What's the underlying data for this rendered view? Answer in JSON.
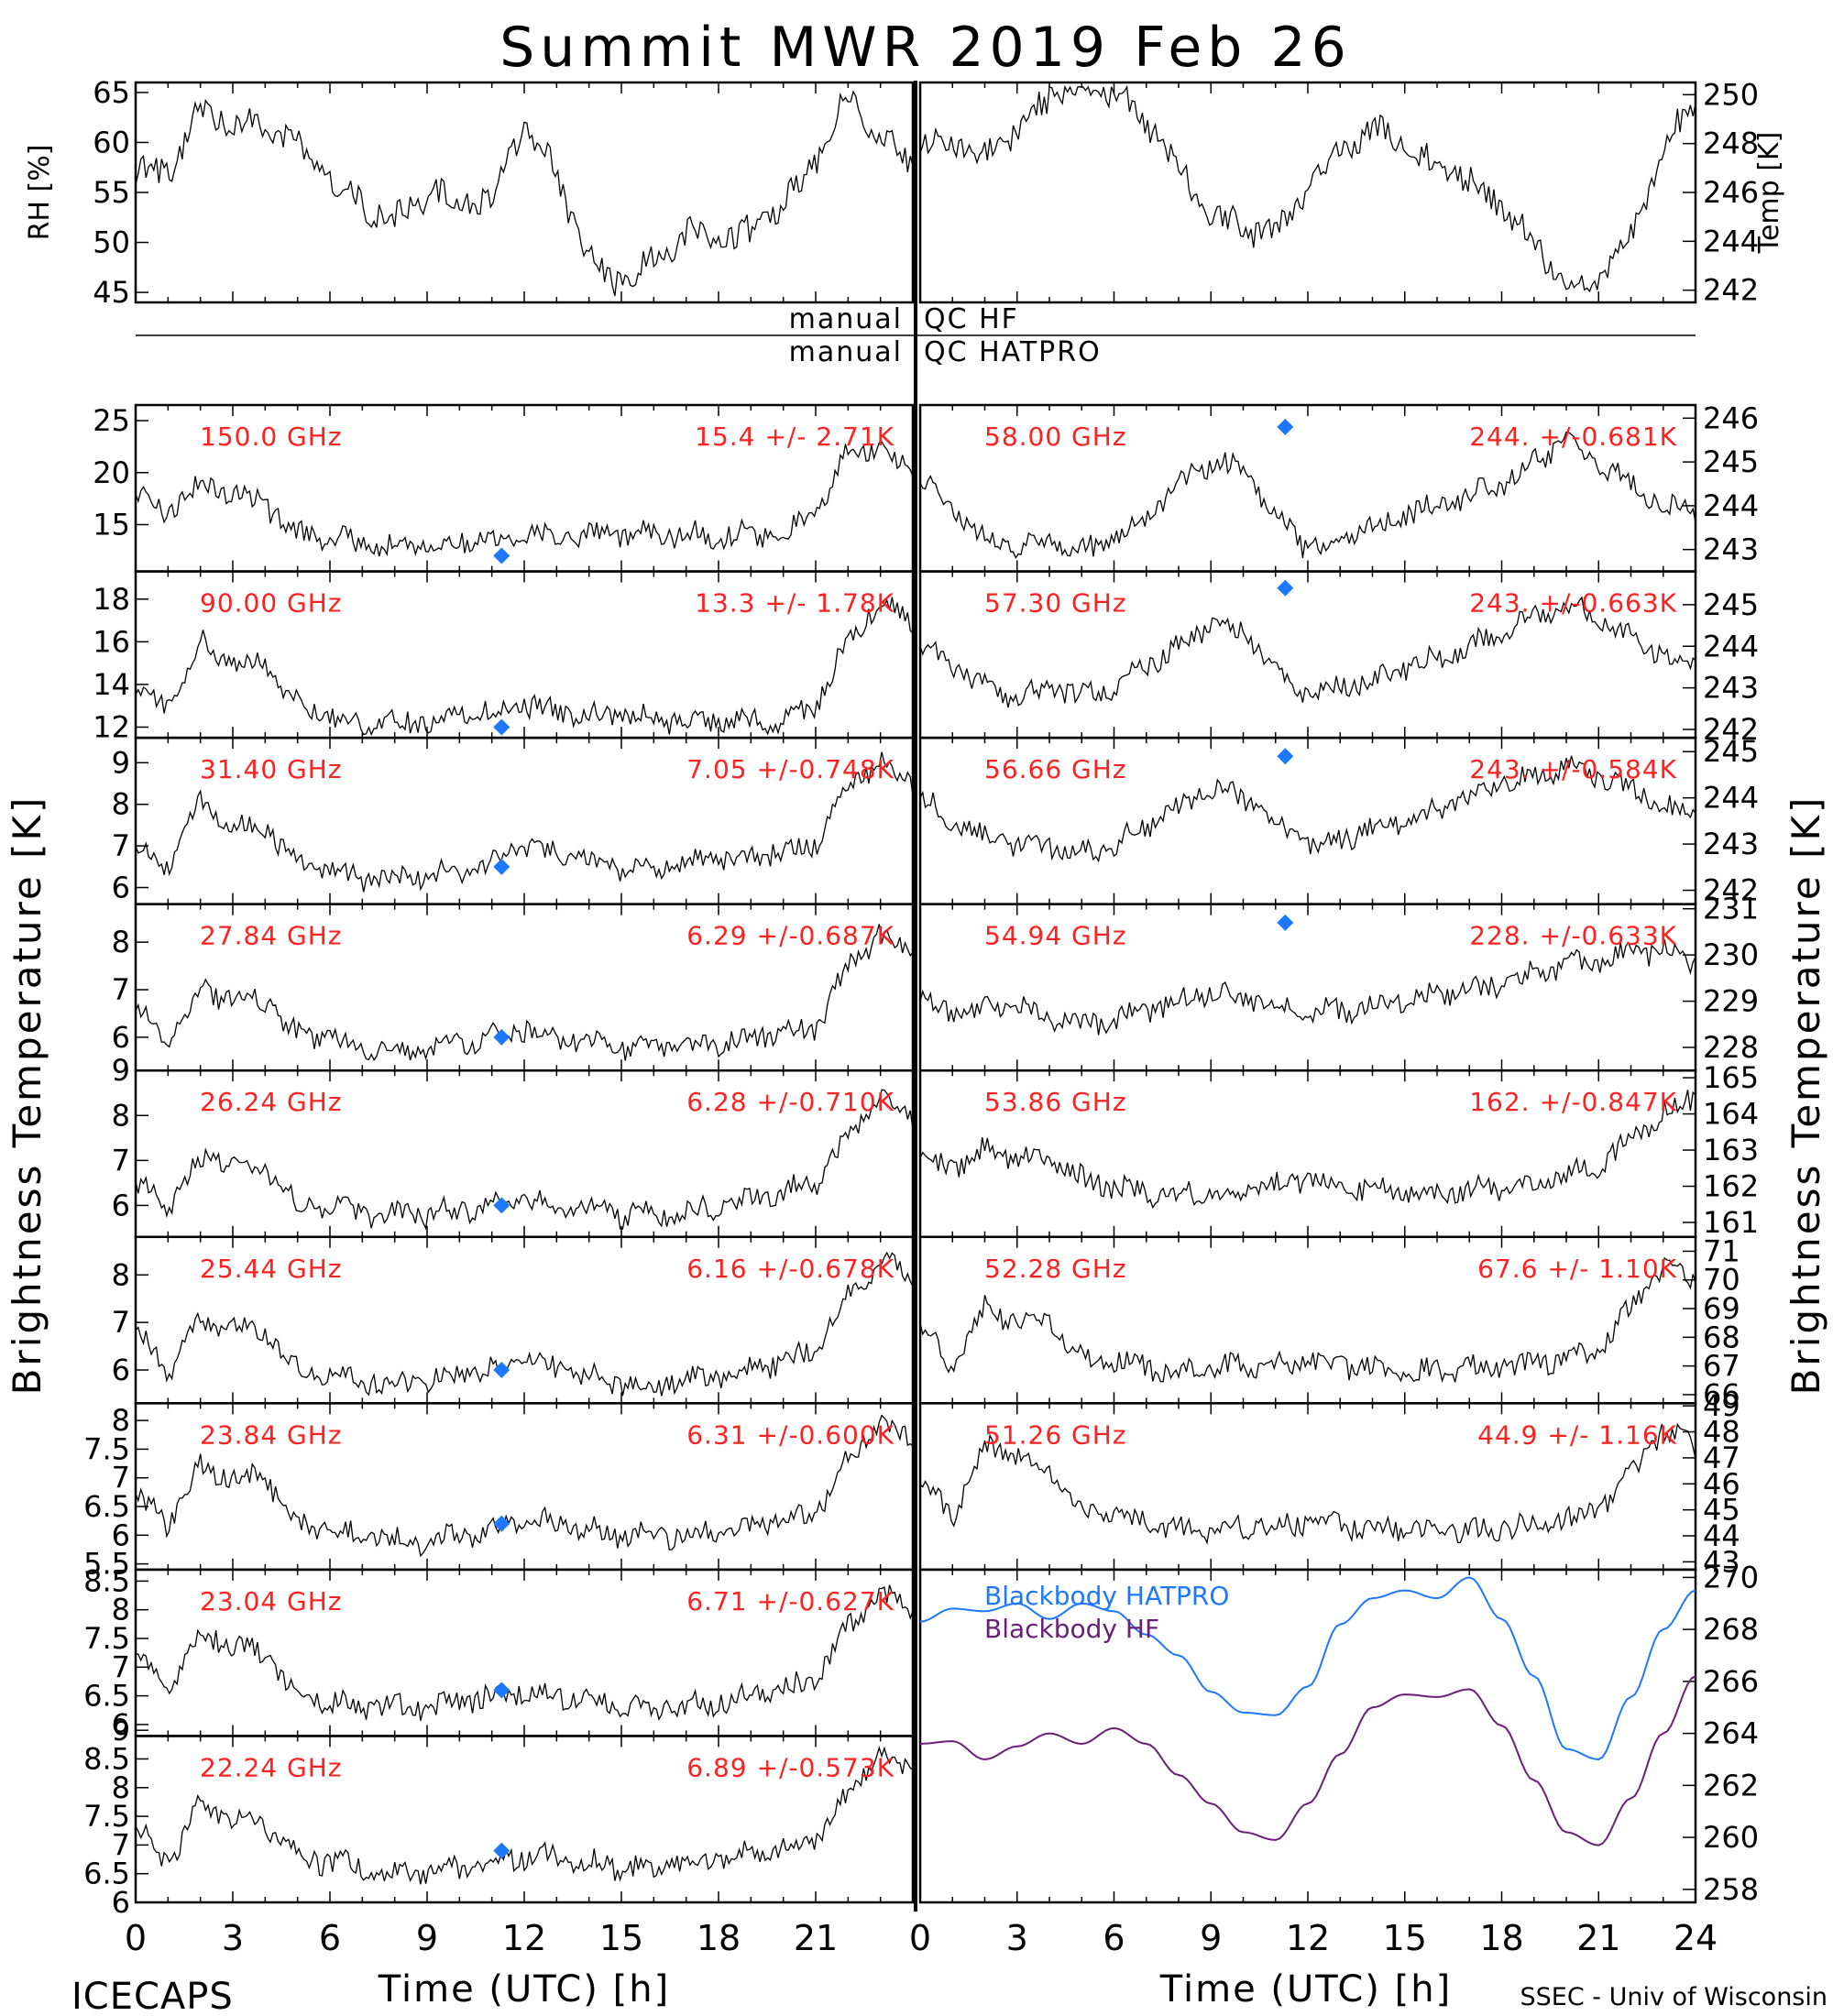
{
  "title": "Summit MWR 2019 Feb 26",
  "footer_left": "ICECAPS",
  "footer_right": "SSEC - Univ of Wisconsin",
  "xlabel": "Time (UTC) [h]",
  "ylabel_left": "Brightness Temperature [K]",
  "ylabel_right": "Brightness Temperature [K]",
  "qc": {
    "left1": "manual",
    "right1": "QC HF",
    "left2": "manual",
    "right2": "QC HATPRO"
  },
  "colors": {
    "data": "#000000",
    "channel_label": "#ff2020",
    "sounding": "#1e78ff",
    "bb_hatpro": "#1e78ff",
    "bb_hf": "#6a1e78"
  },
  "chart_data": [
    {
      "id": "rh",
      "type": "line",
      "ylabel": "RH [%]",
      "ylim": [
        44,
        66
      ],
      "yticks": [
        45,
        50,
        55,
        60,
        65
      ],
      "xlim": [
        0,
        24
      ],
      "x": [
        0,
        1,
        2,
        3,
        4,
        5,
        6,
        7,
        8,
        9,
        10,
        11,
        12,
        13,
        14,
        15,
        16,
        17,
        18,
        19,
        20,
        21,
        22,
        23,
        24
      ],
      "y": [
        57,
        57,
        63,
        62,
        61,
        60,
        56,
        54,
        52,
        55,
        54,
        54,
        62,
        57,
        48,
        46,
        48,
        51,
        50,
        51,
        54,
        58,
        65,
        60,
        58
      ]
    },
    {
      "id": "temp",
      "type": "line",
      "ylabel": "Temp [K]",
      "ylim": [
        241.5,
        250.5
      ],
      "yticks": [
        242,
        244,
        246,
        248,
        250
      ],
      "xlim": [
        0,
        24
      ],
      "x": [
        0,
        1,
        2,
        3,
        4,
        5,
        6,
        7,
        8,
        9,
        10,
        11,
        12,
        13,
        14,
        15,
        16,
        17,
        18,
        19,
        20,
        21,
        22,
        23,
        24
      ],
      "y": [
        248,
        248,
        247.5,
        248.5,
        250,
        250.5,
        250.2,
        249,
        247,
        245,
        244.5,
        244.5,
        246,
        248,
        248.5,
        248,
        247,
        246.5,
        245.5,
        244,
        242,
        242.5,
        244,
        248,
        249.5
      ]
    },
    {
      "id": "c150",
      "type": "line",
      "freq": "150.0 GHz",
      "stat": "15.4 +/-  2.71K",
      "side": "L",
      "ylim": [
        10.5,
        26.5
      ],
      "yticks": [
        15,
        20,
        25
      ],
      "sounding": [
        11.3,
        12
      ],
      "x": [
        0,
        1,
        2,
        3,
        4,
        5,
        6,
        7,
        8,
        9,
        10,
        11,
        12,
        13,
        14,
        15,
        16,
        17,
        18,
        19,
        20,
        21,
        22,
        23,
        24
      ],
      "y": [
        18,
        16,
        19,
        18,
        17,
        14,
        14,
        13,
        13,
        13,
        13.5,
        13.5,
        14,
        14,
        14,
        14,
        14,
        14,
        14,
        14,
        14,
        16,
        22,
        22,
        20
      ]
    },
    {
      "id": "c90",
      "type": "line",
      "freq": "90.00 GHz",
      "stat": "13.3 +/-  1.78K",
      "side": "L",
      "ylim": [
        11.5,
        19.3
      ],
      "yticks": [
        12,
        14,
        16,
        18
      ],
      "sounding": [
        11.3,
        12
      ],
      "x": [
        0,
        1,
        2,
        3,
        4,
        5,
        6,
        7,
        8,
        9,
        10,
        11,
        12,
        13,
        14,
        15,
        16,
        17,
        18,
        19,
        20,
        21,
        22,
        23,
        24
      ],
      "y": [
        14,
        13,
        16,
        15,
        15,
        13,
        12.5,
        12.2,
        12.2,
        12.3,
        12.5,
        12.7,
        13,
        12.8,
        12.6,
        12.5,
        12.4,
        12.3,
        12.3,
        12.3,
        12.3,
        13,
        16,
        18,
        17
      ]
    },
    {
      "id": "c314",
      "type": "line",
      "freq": "31.40 GHz",
      "stat": "7.05 +/-0.748K",
      "side": "L",
      "ylim": [
        5.6,
        9.6
      ],
      "yticks": [
        6,
        7,
        8,
        9
      ],
      "sounding": [
        11.3,
        6.5
      ],
      "x": [
        0,
        1,
        2,
        3,
        4,
        5,
        6,
        7,
        8,
        9,
        10,
        11,
        12,
        13,
        14,
        15,
        16,
        17,
        18,
        19,
        20,
        21,
        22,
        23,
        24
      ],
      "y": [
        7,
        6.5,
        8,
        7.5,
        7.5,
        6.5,
        6.4,
        6.2,
        6.2,
        6.3,
        6.4,
        6.6,
        7,
        6.8,
        6.6,
        6.5,
        6.5,
        6.6,
        6.7,
        6.8,
        6.9,
        7,
        8.5,
        9,
        8.5
      ]
    },
    {
      "id": "c2784",
      "type": "line",
      "freq": "27.84 GHz",
      "stat": "6.29 +/-0.687K",
      "side": "L",
      "ylim": [
        5.3,
        8.8
      ],
      "yticks": [
        6,
        7,
        8
      ],
      "sounding": [
        11.3,
        6
      ],
      "x": [
        0,
        1,
        2,
        3,
        4,
        5,
        6,
        7,
        8,
        9,
        10,
        11,
        12,
        13,
        14,
        15,
        16,
        17,
        18,
        19,
        20,
        21,
        22,
        23,
        24
      ],
      "y": [
        6.5,
        6,
        7,
        6.8,
        6.8,
        6,
        6,
        5.8,
        5.7,
        5.8,
        5.9,
        6,
        6.2,
        6,
        5.9,
        5.8,
        5.8,
        5.8,
        5.9,
        6,
        6.1,
        6.2,
        7.5,
        8.2,
        7.8
      ]
    },
    {
      "id": "c2624",
      "type": "line",
      "freq": "26.24 GHz",
      "stat": "6.28 +/-0.710K",
      "side": "L",
      "ylim": [
        5.3,
        9
      ],
      "yticks": [
        6,
        7,
        8,
        9
      ],
      "sounding": [
        11.3,
        6
      ],
      "x": [
        0,
        1,
        2,
        3,
        4,
        5,
        6,
        7,
        8,
        9,
        10,
        11,
        12,
        13,
        14,
        15,
        16,
        17,
        18,
        19,
        20,
        21,
        22,
        23,
        24
      ],
      "y": [
        6.5,
        6,
        7,
        7,
        6.8,
        6,
        6,
        5.8,
        5.8,
        5.8,
        5.9,
        6,
        6.2,
        6,
        5.9,
        5.8,
        5.8,
        5.9,
        6,
        6.1,
        6.3,
        6.5,
        7.5,
        8.5,
        8
      ]
    },
    {
      "id": "c2544",
      "type": "line",
      "freq": "25.44 GHz",
      "stat": "6.16 +/-0.678K",
      "side": "L",
      "ylim": [
        5.3,
        8.8
      ],
      "yticks": [
        6,
        7,
        8
      ],
      "sounding": [
        11.3,
        6
      ],
      "x": [
        0,
        1,
        2,
        3,
        4,
        5,
        6,
        7,
        8,
        9,
        10,
        11,
        12,
        13,
        14,
        15,
        16,
        17,
        18,
        19,
        20,
        21,
        22,
        23,
        24
      ],
      "y": [
        6.8,
        6,
        7,
        7,
        6.8,
        6,
        6,
        5.8,
        5.7,
        5.8,
        5.9,
        6,
        6.2,
        6,
        5.9,
        5.7,
        5.7,
        5.8,
        5.9,
        6,
        6.2,
        6.4,
        7.5,
        8.3,
        8
      ]
    },
    {
      "id": "c2384",
      "type": "line",
      "freq": "23.84 GHz",
      "stat": "6.31 +/-0.600K",
      "side": "L",
      "ylim": [
        5.4,
        8.3
      ],
      "yticks": [
        5.5,
        6.0,
        6.5,
        7.0,
        7.5,
        8.0
      ],
      "sounding": [
        11.3,
        6.2
      ],
      "x": [
        0,
        1,
        2,
        3,
        4,
        5,
        6,
        7,
        8,
        9,
        10,
        11,
        12,
        13,
        14,
        15,
        16,
        17,
        18,
        19,
        20,
        21,
        22,
        23,
        24
      ],
      "y": [
        6.7,
        6.2,
        7.2,
        7,
        7,
        6.2,
        6.1,
        6,
        5.9,
        5.9,
        6,
        6.1,
        6.3,
        6.2,
        6.1,
        6,
        6,
        6,
        6.1,
        6.2,
        6.3,
        6.4,
        7.3,
        8,
        7.7
      ]
    },
    {
      "id": "c2304",
      "type": "line",
      "freq": "23.04 GHz",
      "stat": "6.71 +/-0.627K",
      "side": "L",
      "ylim": [
        5.8,
        8.7
      ],
      "yticks": [
        6.0,
        6.5,
        7.0,
        7.5,
        8.0,
        8.5
      ],
      "sounding": [
        11.3,
        6.6
      ],
      "x": [
        0,
        1,
        2,
        3,
        4,
        5,
        6,
        7,
        8,
        9,
        10,
        11,
        12,
        13,
        14,
        15,
        16,
        17,
        18,
        19,
        20,
        21,
        22,
        23,
        24
      ],
      "y": [
        7.2,
        6.5,
        7.6,
        7.4,
        7.2,
        6.5,
        6.4,
        6.3,
        6.3,
        6.3,
        6.4,
        6.5,
        6.6,
        6.5,
        6.4,
        6.3,
        6.3,
        6.3,
        6.4,
        6.5,
        6.6,
        6.8,
        7.7,
        8.3,
        8
      ]
    },
    {
      "id": "c2224",
      "type": "line",
      "freq": "22.24 GHz",
      "stat": "6.89 +/-0.573K",
      "side": "L",
      "ylim": [
        6.0,
        8.9
      ],
      "yticks": [
        6.0,
        6.5,
        7.0,
        7.5,
        8.0,
        8.5,
        9.0
      ],
      "sounding": [
        11.3,
        6.9
      ],
      "x": [
        0,
        1,
        2,
        3,
        4,
        5,
        6,
        7,
        8,
        9,
        10,
        11,
        12,
        13,
        14,
        15,
        16,
        17,
        18,
        19,
        20,
        21,
        22,
        23,
        24
      ],
      "y": [
        7.3,
        6.7,
        7.7,
        7.5,
        7.3,
        6.8,
        6.7,
        6.6,
        6.5,
        6.5,
        6.6,
        6.7,
        6.8,
        6.8,
        6.7,
        6.6,
        6.6,
        6.7,
        6.8,
        6.9,
        7,
        7.1,
        7.9,
        8.6,
        8.3
      ]
    },
    {
      "id": "c5800",
      "type": "line",
      "freq": "58.00 GHz",
      "stat": "244. +/-0.681K",
      "side": "R",
      "ylim": [
        242.5,
        246.3
      ],
      "yticks": [
        243,
        244,
        245,
        246
      ],
      "sounding": [
        11.3,
        245.8
      ],
      "x": [
        0,
        1,
        2,
        3,
        4,
        5,
        6,
        7,
        8,
        9,
        10,
        11,
        12,
        13,
        14,
        15,
        16,
        17,
        18,
        19,
        20,
        21,
        22,
        23,
        24
      ],
      "y": [
        244.5,
        244,
        243.2,
        243,
        243.2,
        243,
        243.2,
        243.8,
        244.5,
        245,
        244.8,
        243.8,
        243,
        243.2,
        243.5,
        243.8,
        244,
        244.2,
        244.5,
        245,
        245.5,
        245,
        244.5,
        244,
        243.8
      ]
    },
    {
      "id": "c5730",
      "type": "line",
      "freq": "57.30 GHz",
      "stat": "243. +/-0.663K",
      "side": "R",
      "ylim": [
        241.8,
        245.8
      ],
      "yticks": [
        242,
        243,
        244,
        245
      ],
      "sounding": [
        11.3,
        245.4
      ],
      "x": [
        0,
        1,
        2,
        3,
        4,
        5,
        6,
        7,
        8,
        9,
        10,
        11,
        12,
        13,
        14,
        15,
        16,
        17,
        18,
        19,
        20,
        21,
        22,
        23,
        24
      ],
      "y": [
        244,
        243.5,
        243,
        242.8,
        243,
        242.8,
        243,
        243.5,
        244,
        244.5,
        244.3,
        243.5,
        242.8,
        243,
        243.2,
        243.5,
        243.7,
        244,
        244.3,
        244.7,
        245,
        244.7,
        244.2,
        243.8,
        243.5
      ]
    },
    {
      "id": "c5666",
      "type": "line",
      "freq": "56.66 GHz",
      "stat": "243. +/-0.584K",
      "side": "R",
      "ylim": [
        241.7,
        245.3
      ],
      "yticks": [
        242,
        243,
        244,
        245
      ],
      "sounding": [
        11.3,
        244.9
      ],
      "x": [
        0,
        1,
        2,
        3,
        4,
        5,
        6,
        7,
        8,
        9,
        10,
        11,
        12,
        13,
        14,
        15,
        16,
        17,
        18,
        19,
        20,
        21,
        22,
        23,
        24
      ],
      "y": [
        244,
        243.5,
        243.2,
        243,
        243,
        242.8,
        243,
        243.4,
        243.8,
        244.2,
        244,
        243.4,
        243,
        243.1,
        243.3,
        243.5,
        243.7,
        244,
        244.3,
        244.5,
        244.7,
        244.5,
        244.2,
        243.8,
        243.6
      ]
    },
    {
      "id": "c5494",
      "type": "line",
      "freq": "54.94 GHz",
      "stat": "228. +/-0.633K",
      "side": "R",
      "ylim": [
        227.5,
        231.1
      ],
      "yticks": [
        228,
        229,
        230,
        231
      ],
      "sounding": [
        11.3,
        230.7
      ],
      "x": [
        0,
        1,
        2,
        3,
        4,
        5,
        6,
        7,
        8,
        9,
        10,
        11,
        12,
        13,
        14,
        15,
        16,
        17,
        18,
        19,
        20,
        21,
        22,
        23,
        24
      ],
      "y": [
        229,
        228.8,
        228.8,
        228.9,
        228.7,
        228.5,
        228.6,
        228.8,
        229,
        229.2,
        229.1,
        228.9,
        228.8,
        228.8,
        228.9,
        229,
        229.1,
        229.2,
        229.4,
        229.6,
        229.8,
        229.9,
        230,
        230.1,
        229.8
      ]
    },
    {
      "id": "c5386",
      "type": "line",
      "freq": "53.86 GHz",
      "stat": "162. +/-0.847K",
      "side": "R",
      "ylim": [
        160.6,
        165.2
      ],
      "yticks": [
        161,
        162,
        163,
        164,
        165
      ],
      "x": [
        0,
        1,
        2,
        3,
        4,
        5,
        6,
        7,
        8,
        9,
        10,
        11,
        12,
        13,
        14,
        15,
        16,
        17,
        18,
        19,
        20,
        21,
        22,
        23,
        24
      ],
      "y": [
        162.8,
        162.5,
        163,
        162.8,
        162.8,
        162.2,
        162,
        161.8,
        161.8,
        161.8,
        161.9,
        162,
        162.2,
        162,
        161.9,
        161.8,
        161.8,
        161.9,
        162,
        162.1,
        162.3,
        162.6,
        163.3,
        164,
        164.5
      ]
    },
    {
      "id": "c5228",
      "type": "line",
      "freq": "52.28 GHz",
      "stat": "67.6 +/- 1.10K",
      "side": "R",
      "ylim": [
        65.7,
        71.5
      ],
      "yticks": [
        66,
        67,
        68,
        69,
        70,
        71
      ],
      "x": [
        0,
        1,
        2,
        3,
        4,
        5,
        6,
        7,
        8,
        9,
        10,
        11,
        12,
        13,
        14,
        15,
        16,
        17,
        18,
        19,
        20,
        21,
        22,
        23,
        24
      ],
      "y": [
        68.5,
        67,
        69,
        68.5,
        68.5,
        67.3,
        67.2,
        67,
        66.8,
        66.9,
        67,
        67,
        67.2,
        67,
        66.9,
        66.8,
        66.8,
        66.9,
        67,
        67.1,
        67.2,
        67.5,
        69,
        70.5,
        70
      ]
    },
    {
      "id": "c5126",
      "type": "line",
      "freq": "51.26 GHz",
      "stat": "44.9 +/- 1.16K",
      "side": "R",
      "ylim": [
        42.7,
        49.1
      ],
      "yticks": [
        43,
        44,
        45,
        46,
        47,
        48,
        49
      ],
      "x": [
        0,
        1,
        2,
        3,
        4,
        5,
        6,
        7,
        8,
        9,
        10,
        11,
        12,
        13,
        14,
        15,
        16,
        17,
        18,
        19,
        20,
        21,
        22,
        23,
        24
      ],
      "y": [
        46,
        44.8,
        47.5,
        47,
        46.5,
        45,
        44.8,
        44.5,
        44.2,
        44.2,
        44.3,
        44.4,
        44.5,
        44.4,
        44.3,
        44.2,
        44.2,
        44.2,
        44.3,
        44.4,
        44.6,
        45,
        46.5,
        48,
        47.5
      ]
    },
    {
      "id": "blackbody",
      "type": "line",
      "ylabel": "Temp [K]",
      "ylim": [
        257.5,
        270.3
      ],
      "yticks": [
        258,
        260,
        262,
        264,
        266,
        268,
        270
      ],
      "xlim": [
        0,
        24
      ],
      "x": [
        0,
        1,
        2,
        3,
        4,
        5,
        6,
        7,
        8,
        9,
        10,
        11,
        12,
        13,
        14,
        15,
        16,
        17,
        18,
        19,
        20,
        21,
        22,
        23,
        24
      ],
      "series": [
        {
          "name": "Blackbody HATPRO",
          "values": [
            268.3,
            268.8,
            268.7,
            269.0,
            268.4,
            269.0,
            268.7,
            267.8,
            267.0,
            265.6,
            264.8,
            264.7,
            265.8,
            268.2,
            269.2,
            269.5,
            269.2,
            270.0,
            268.4,
            266.2,
            263.4,
            263.0,
            265.4,
            268.0,
            269.5
          ]
        },
        {
          "name": "Blackbody HF",
          "values": [
            263.6,
            263.7,
            263.0,
            263.5,
            264.0,
            263.6,
            264.2,
            263.6,
            262.4,
            261.3,
            260.2,
            259.9,
            261.3,
            263.2,
            265.0,
            265.5,
            265.4,
            265.7,
            264.3,
            262.2,
            260.2,
            259.7,
            261.5,
            264.0,
            266.2
          ]
        }
      ]
    }
  ]
}
